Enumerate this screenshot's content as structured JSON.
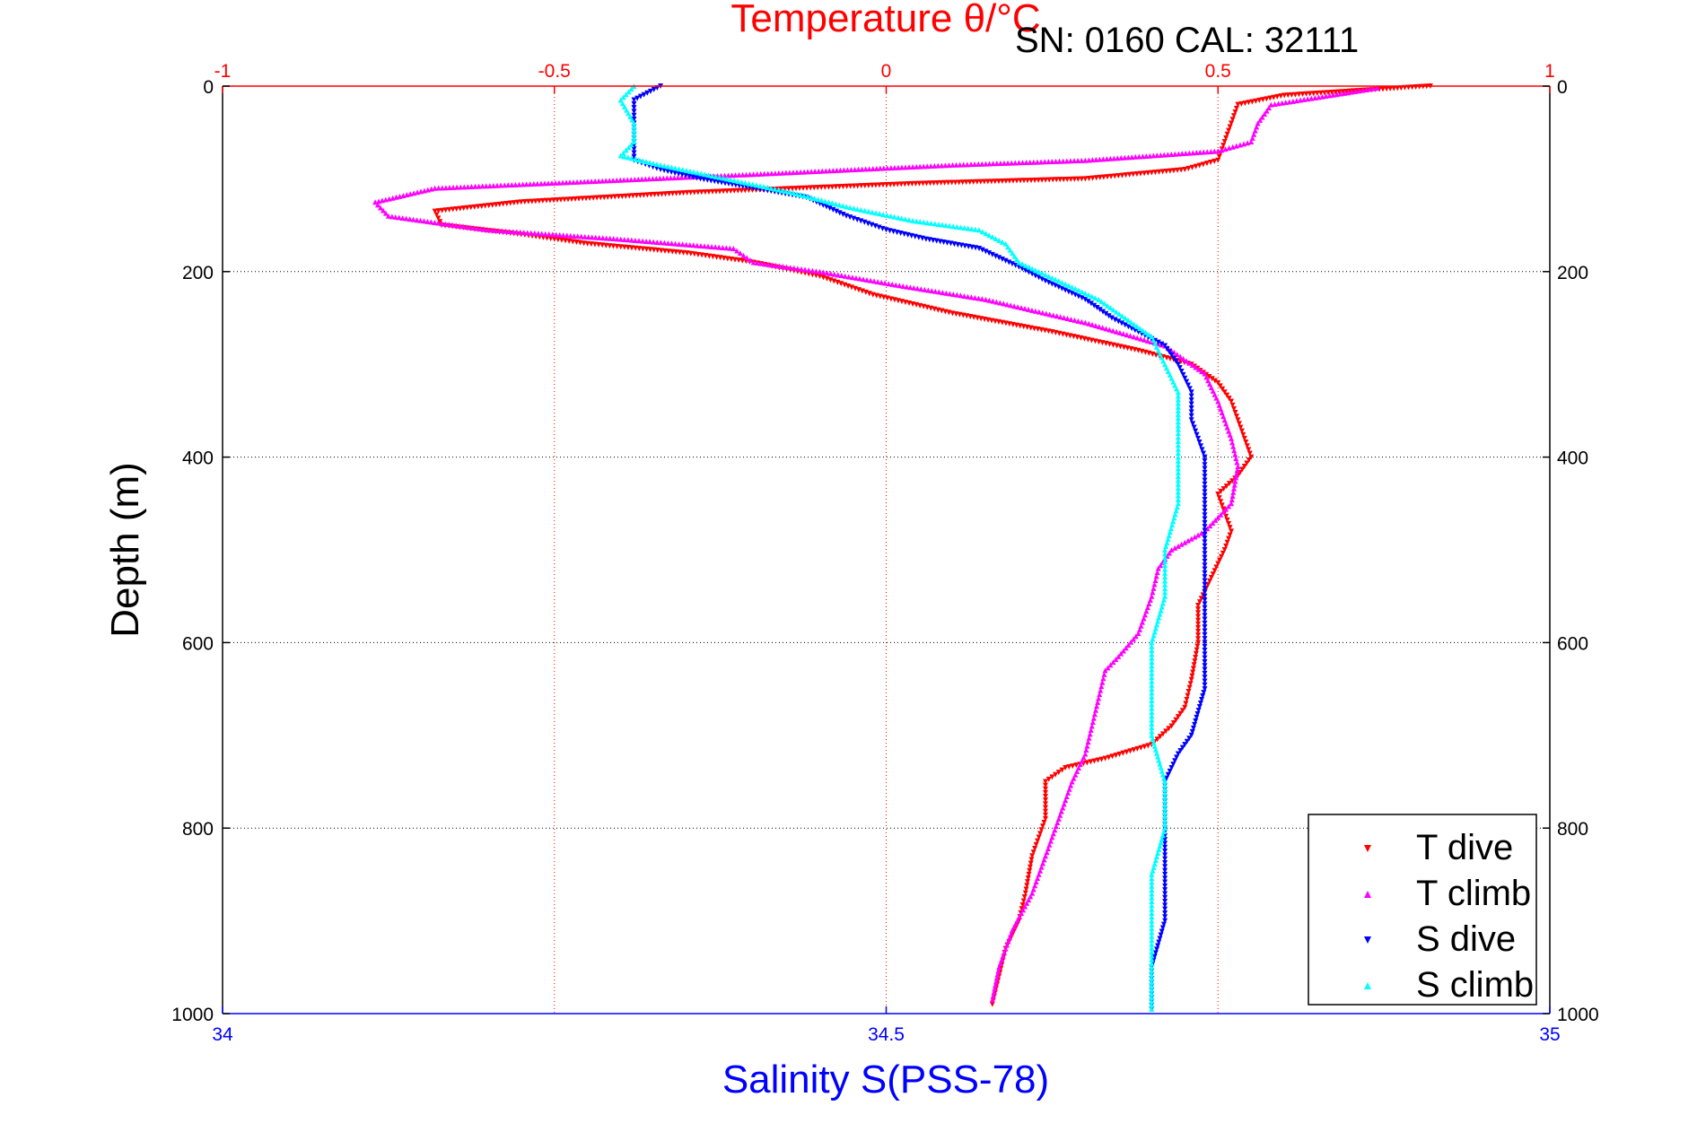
{
  "header_text": "SN: 0160  CAL: 32111",
  "chart_data": {
    "type": "scatter",
    "title": "",
    "top_axis": {
      "label": "Temperature θ/°C",
      "range": [
        -1,
        1
      ],
      "ticks": [
        -1,
        -0.5,
        0,
        0.5,
        1
      ],
      "tick_labels": [
        "-1",
        "-0.5",
        "0",
        "0.5",
        "1"
      ],
      "color": "#ff0000"
    },
    "bottom_axis": {
      "label": "Salinity S(PSS-78)",
      "range": [
        34,
        35
      ],
      "ticks": [
        34,
        34.5,
        35
      ],
      "tick_labels": [
        "34",
        "34.5",
        "35"
      ],
      "color": "#0000ff"
    },
    "y_axis": {
      "label": "Depth (m)",
      "range": [
        0,
        1000
      ],
      "inverted": true,
      "ticks": [
        0,
        200,
        400,
        600,
        800,
        1000
      ],
      "tick_labels": [
        "0",
        "200",
        "400",
        "600",
        "800",
        "1000"
      ]
    },
    "grid": true,
    "legend_position": "bottom-right",
    "series": [
      {
        "name": "T dive",
        "axis": "temperature",
        "color": "#ff0000",
        "marker": "triangle-down",
        "points": [
          [
            0.82,
            0
          ],
          [
            0.6,
            10
          ],
          [
            0.53,
            20
          ],
          [
            0.52,
            40
          ],
          [
            0.51,
            60
          ],
          [
            0.5,
            80
          ],
          [
            0.45,
            90
          ],
          [
            0.3,
            100
          ],
          [
            0.05,
            105
          ],
          [
            -0.3,
            115
          ],
          [
            -0.55,
            125
          ],
          [
            -0.68,
            135
          ],
          [
            -0.67,
            150
          ],
          [
            -0.55,
            160
          ],
          [
            -0.45,
            170
          ],
          [
            -0.3,
            180
          ],
          [
            -0.2,
            190
          ],
          [
            -0.1,
            205
          ],
          [
            -0.02,
            225
          ],
          [
            0.1,
            245
          ],
          [
            0.25,
            265
          ],
          [
            0.38,
            285
          ],
          [
            0.46,
            300
          ],
          [
            0.5,
            320
          ],
          [
            0.52,
            340
          ],
          [
            0.53,
            360
          ],
          [
            0.54,
            380
          ],
          [
            0.55,
            400
          ],
          [
            0.53,
            420
          ],
          [
            0.5,
            440
          ],
          [
            0.51,
            460
          ],
          [
            0.52,
            480
          ],
          [
            0.51,
            500
          ],
          [
            0.49,
            530
          ],
          [
            0.47,
            560
          ],
          [
            0.47,
            600
          ],
          [
            0.46,
            640
          ],
          [
            0.45,
            670
          ],
          [
            0.43,
            690
          ],
          [
            0.4,
            710
          ],
          [
            0.33,
            725
          ],
          [
            0.27,
            735
          ],
          [
            0.24,
            750
          ],
          [
            0.24,
            790
          ],
          [
            0.22,
            830
          ],
          [
            0.21,
            870
          ],
          [
            0.2,
            900
          ],
          [
            0.18,
            930
          ],
          [
            0.17,
            960
          ],
          [
            0.16,
            990
          ]
        ]
      },
      {
        "name": "T climb",
        "axis": "temperature",
        "color": "#ff00ff",
        "marker": "triangle-up",
        "points": [
          [
            0.74,
            2
          ],
          [
            0.58,
            20
          ],
          [
            0.56,
            40
          ],
          [
            0.55,
            60
          ],
          [
            0.5,
            70
          ],
          [
            0.3,
            80
          ],
          [
            0.1,
            85
          ],
          [
            -0.2,
            95
          ],
          [
            -0.52,
            105
          ],
          [
            -0.68,
            110
          ],
          [
            -0.77,
            125
          ],
          [
            -0.75,
            140
          ],
          [
            -0.6,
            155
          ],
          [
            -0.4,
            165
          ],
          [
            -0.23,
            175
          ],
          [
            -0.2,
            190
          ],
          [
            -0.1,
            200
          ],
          [
            0.02,
            215
          ],
          [
            0.15,
            230
          ],
          [
            0.3,
            255
          ],
          [
            0.42,
            280
          ],
          [
            0.48,
            310
          ],
          [
            0.5,
            340
          ],
          [
            0.52,
            380
          ],
          [
            0.53,
            410
          ],
          [
            0.52,
            450
          ],
          [
            0.48,
            480
          ],
          [
            0.43,
            500
          ],
          [
            0.41,
            520
          ],
          [
            0.4,
            550
          ],
          [
            0.38,
            590
          ],
          [
            0.35,
            615
          ],
          [
            0.33,
            630
          ],
          [
            0.32,
            660
          ],
          [
            0.31,
            690
          ],
          [
            0.3,
            720
          ],
          [
            0.28,
            750
          ],
          [
            0.26,
            790
          ],
          [
            0.24,
            830
          ],
          [
            0.22,
            870
          ],
          [
            0.19,
            910
          ],
          [
            0.17,
            950
          ],
          [
            0.16,
            985
          ]
        ]
      },
      {
        "name": "S dive",
        "axis": "salinity",
        "color": "#0000ff",
        "marker": "triangle-down",
        "points": [
          [
            34.33,
            0
          ],
          [
            34.31,
            15
          ],
          [
            34.31,
            40
          ],
          [
            34.31,
            60
          ],
          [
            34.31,
            80
          ],
          [
            34.33,
            90
          ],
          [
            34.36,
            100
          ],
          [
            34.4,
            110
          ],
          [
            34.44,
            120
          ],
          [
            34.47,
            140
          ],
          [
            34.5,
            155
          ],
          [
            34.53,
            165
          ],
          [
            34.57,
            175
          ],
          [
            34.6,
            195
          ],
          [
            34.62,
            210
          ],
          [
            34.65,
            230
          ],
          [
            34.67,
            250
          ],
          [
            34.69,
            265
          ],
          [
            34.71,
            280
          ],
          [
            34.72,
            300
          ],
          [
            34.73,
            330
          ],
          [
            34.73,
            360
          ],
          [
            34.74,
            400
          ],
          [
            34.74,
            450
          ],
          [
            34.74,
            500
          ],
          [
            34.74,
            550
          ],
          [
            34.74,
            600
          ],
          [
            34.74,
            650
          ],
          [
            34.73,
            700
          ],
          [
            34.72,
            720
          ],
          [
            34.71,
            750
          ],
          [
            34.71,
            800
          ],
          [
            34.71,
            850
          ],
          [
            34.71,
            900
          ],
          [
            34.7,
            950
          ],
          [
            34.7,
            995
          ]
        ]
      },
      {
        "name": "S climb",
        "axis": "salinity",
        "color": "#00ffff",
        "marker": "triangle-up",
        "points": [
          [
            34.31,
            0
          ],
          [
            34.3,
            15
          ],
          [
            34.31,
            40
          ],
          [
            34.31,
            60
          ],
          [
            34.3,
            75
          ],
          [
            34.33,
            85
          ],
          [
            34.38,
            100
          ],
          [
            34.43,
            115
          ],
          [
            34.47,
            130
          ],
          [
            34.52,
            145
          ],
          [
            34.57,
            155
          ],
          [
            34.59,
            170
          ],
          [
            34.6,
            190
          ],
          [
            34.63,
            210
          ],
          [
            34.66,
            230
          ],
          [
            34.68,
            250
          ],
          [
            34.7,
            270
          ],
          [
            34.71,
            300
          ],
          [
            34.72,
            330
          ],
          [
            34.72,
            370
          ],
          [
            34.72,
            400
          ],
          [
            34.72,
            450
          ],
          [
            34.71,
            500
          ],
          [
            34.71,
            550
          ],
          [
            34.7,
            600
          ],
          [
            34.7,
            650
          ],
          [
            34.7,
            700
          ],
          [
            34.71,
            750
          ],
          [
            34.71,
            800
          ],
          [
            34.7,
            850
          ],
          [
            34.7,
            900
          ],
          [
            34.7,
            950
          ],
          [
            34.7,
            995
          ]
        ]
      }
    ]
  }
}
